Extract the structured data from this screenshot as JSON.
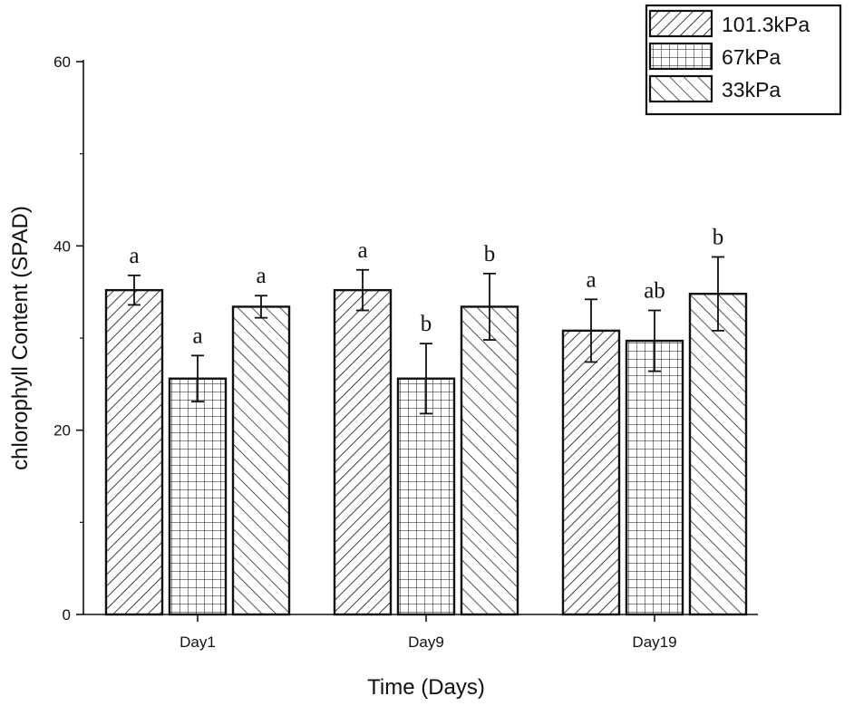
{
  "chart_data": {
    "type": "bar",
    "title": "",
    "xlabel": "Time (Days)",
    "ylabel": "chlorophyll Content (SPAD)",
    "ylim": [
      0,
      60
    ],
    "yticks": [
      0,
      20,
      40,
      60
    ],
    "categories": [
      "Day1",
      "Day9",
      "Day19"
    ],
    "series": [
      {
        "name": "101.3kPa",
        "pattern": "diagonal-forward",
        "values": [
          35.2,
          35.2,
          30.8
        ],
        "errors": [
          1.6,
          2.2,
          3.4
        ],
        "labels": [
          "a",
          "a",
          "a"
        ]
      },
      {
        "name": "67kPa",
        "pattern": "grid",
        "values": [
          25.6,
          25.6,
          29.7
        ],
        "errors": [
          2.5,
          3.8,
          3.3
        ],
        "labels": [
          "a",
          "b",
          "ab"
        ]
      },
      {
        "name": "33kPa",
        "pattern": "diagonal-backward",
        "values": [
          33.4,
          33.4,
          34.8
        ],
        "errors": [
          1.2,
          3.6,
          4.0
        ],
        "labels": [
          "a",
          "b",
          "b"
        ]
      }
    ],
    "legend_position": "top-right"
  }
}
